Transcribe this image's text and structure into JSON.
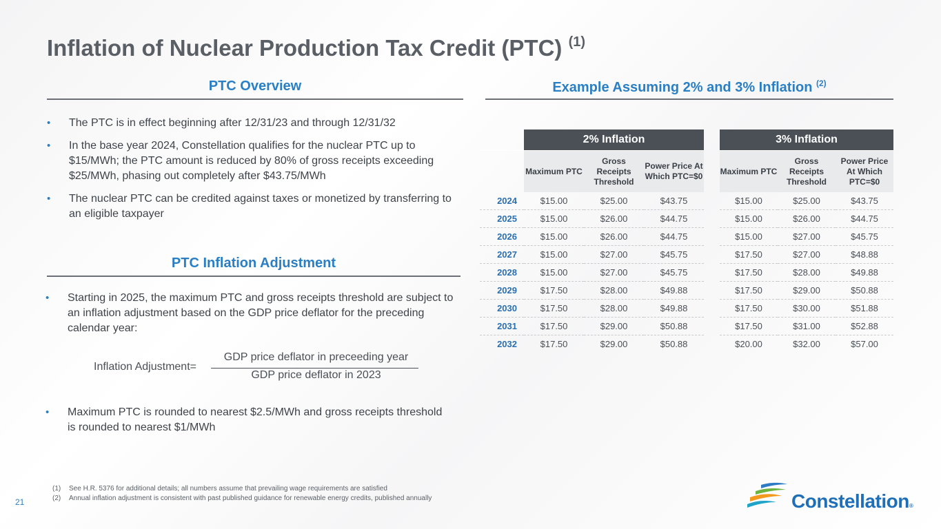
{
  "title": {
    "text": "Inflation of Nuclear Production Tax Credit (PTC)",
    "note": "(1)"
  },
  "overview": {
    "heading": "PTC Overview",
    "bullets": [
      "The PTC is in effect beginning after 12/31/23 and through 12/31/32",
      "In the base year 2024, Constellation qualifies for the nuclear PTC up to $15/MWh; the PTC amount is reduced by 80% of gross receipts exceeding $25/MWh, phasing out completely after $43.75/MWh",
      "The nuclear PTC can be credited against taxes or monetized by transferring to an eligible taxpayer"
    ]
  },
  "adjustment": {
    "heading": "PTC Inflation Adjustment",
    "bullet1": "Starting in 2025, the maximum PTC and gross receipts threshold are subject to an inflation adjustment based on the GDP price deflator for the preceding calendar year:",
    "formula": {
      "lhs": "Inflation Adjustment=",
      "numerator": "GDP price deflator in preceeding year",
      "denominator": "GDP price deflator in 2023"
    },
    "bullet2": "Maximum PTC is rounded to nearest $2.5/MWh and gross receipts threshold is rounded to nearest $1/MWh"
  },
  "example": {
    "heading": "Example Assuming 2% and 3% Inflation",
    "note": "(2)"
  },
  "columns": {
    "max": "Maximum PTC",
    "gross": "Gross Receipts Threshold",
    "power": "Power Price At Which PTC=$0"
  },
  "table2": {
    "label": "2% Inflation",
    "rows": [
      {
        "year": "2024",
        "max": "$15.00",
        "gross": "$25.00",
        "power": "$43.75"
      },
      {
        "year": "2025",
        "max": "$15.00",
        "gross": "$26.00",
        "power": "$44.75"
      },
      {
        "year": "2026",
        "max": "$15.00",
        "gross": "$26.00",
        "power": "$44.75"
      },
      {
        "year": "2027",
        "max": "$15.00",
        "gross": "$27.00",
        "power": "$45.75"
      },
      {
        "year": "2028",
        "max": "$15.00",
        "gross": "$27.00",
        "power": "$45.75"
      },
      {
        "year": "2029",
        "max": "$17.50",
        "gross": "$28.00",
        "power": "$49.88"
      },
      {
        "year": "2030",
        "max": "$17.50",
        "gross": "$28.00",
        "power": "$49.88"
      },
      {
        "year": "2031",
        "max": "$17.50",
        "gross": "$29.00",
        "power": "$50.88"
      },
      {
        "year": "2032",
        "max": "$17.50",
        "gross": "$29.00",
        "power": "$50.88"
      }
    ]
  },
  "table3": {
    "label": "3% Inflation",
    "rows": [
      {
        "max": "$15.00",
        "gross": "$25.00",
        "power": "$43.75"
      },
      {
        "max": "$15.00",
        "gross": "$26.00",
        "power": "$44.75"
      },
      {
        "max": "$15.00",
        "gross": "$27.00",
        "power": "$45.75"
      },
      {
        "max": "$17.50",
        "gross": "$27.00",
        "power": "$48.88"
      },
      {
        "max": "$17.50",
        "gross": "$28.00",
        "power": "$49.88"
      },
      {
        "max": "$17.50",
        "gross": "$29.00",
        "power": "$50.88"
      },
      {
        "max": "$17.50",
        "gross": "$30.00",
        "power": "$51.88"
      },
      {
        "max": "$17.50",
        "gross": "$31.00",
        "power": "$52.88"
      },
      {
        "max": "$20.00",
        "gross": "$32.00",
        "power": "$57.00"
      }
    ]
  },
  "footnotes": [
    {
      "n": "(1)",
      "text": "See H.R. 5376 for additional details; all numbers assume that prevailing wage requirements are satisfied"
    },
    {
      "n": "(2)",
      "text": "Annual inflation adjustment is consistent with past published guidance for renewable energy credits, published annually"
    }
  ],
  "page_number": "21",
  "logo": {
    "name": "Constellation",
    "mark": "®",
    "colors": [
      "#2e7bc4",
      "#6cb33f",
      "#f39a1e",
      "#1fa3c9"
    ]
  },
  "colors": {
    "accent": "#2a7fc4",
    "band": "#4b5057",
    "subheader": "#e9eaec"
  }
}
